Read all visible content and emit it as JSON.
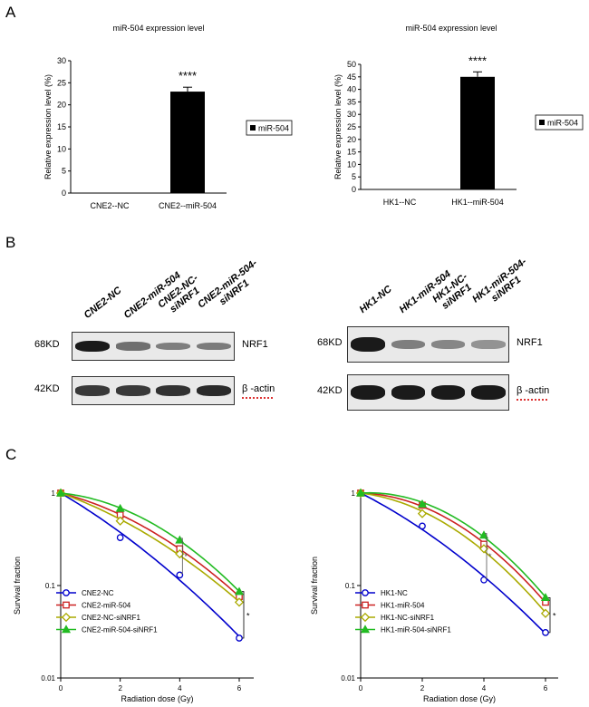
{
  "panels": {
    "a": "A",
    "b": "B",
    "c": "C"
  },
  "bar_charts": [
    {
      "id": "cne2",
      "title": "miR-504 expression level",
      "ylabel": "Relative expression level (%)",
      "yticks": [
        0,
        5,
        10,
        15,
        20,
        25,
        30
      ],
      "ylim": [
        0,
        30
      ],
      "categories": [
        "CNE2--NC",
        "CNE2--miR-504"
      ],
      "values": [
        0,
        23
      ],
      "errors": [
        0,
        1
      ],
      "significance": "****",
      "legend": "miR-504"
    },
    {
      "id": "hk1",
      "title": "miR-504 expression level",
      "ylabel": "Relative expression level (%)",
      "yticks": [
        0,
        5,
        10,
        15,
        20,
        25,
        30,
        35,
        40,
        45,
        50
      ],
      "ylim": [
        0,
        50
      ],
      "categories": [
        "HK1--NC",
        "HK1--miR-504"
      ],
      "values": [
        0,
        45
      ],
      "errors": [
        0,
        2
      ],
      "significance": "****",
      "legend": "miR-504"
    }
  ],
  "blots": [
    {
      "id": "cne2",
      "lanes": [
        "CNE2-NC",
        "CNE2-miR-504",
        "CNE2-NC-siNRF1",
        "CNE2-miR-504-siNRF1"
      ],
      "rows": [
        {
          "kd": "68KD",
          "protein": "NRF1",
          "levels": [
            1.0,
            0.45,
            0.35,
            0.38
          ]
        },
        {
          "kd": "42KD",
          "protein": "β -actin",
          "levels": [
            0.8,
            0.8,
            0.85,
            0.9
          ]
        }
      ]
    },
    {
      "id": "hk1",
      "lanes": [
        "HK1-NC",
        "HK1-miR-504",
        "HK1-NC-siNRF1",
        "HK1-miR-504-siNRF1"
      ],
      "rows": [
        {
          "kd": "68KD",
          "protein": "NRF1",
          "levels": [
            1.0,
            0.35,
            0.3,
            0.22
          ]
        },
        {
          "kd": "42KD",
          "protein": "β -actin",
          "levels": [
            1.0,
            1.0,
            1.0,
            1.0
          ]
        }
      ]
    }
  ],
  "chart_data": [
    {
      "type": "line",
      "id": "cne2",
      "xlabel": "Radiation dose (Gy)",
      "ylabel": "Survival fraction",
      "x": [
        0,
        2,
        4,
        6
      ],
      "xticks": [
        0,
        2,
        4,
        6
      ],
      "yticks": [
        1,
        0.1,
        0.01
      ],
      "yticklabels": [
        "1",
        "0.1",
        "0.01"
      ],
      "yscale": "log",
      "ylim": [
        0.01,
        1
      ],
      "significance": [
        "*",
        "*"
      ],
      "series": [
        {
          "name": "CNE2-NC",
          "color": "#0000cc",
          "marker": "circle",
          "values": [
            1.0,
            0.33,
            0.13,
            0.027
          ]
        },
        {
          "name": "CNE2-miR-504",
          "color": "#cc2222",
          "marker": "square",
          "values": [
            1.0,
            0.58,
            0.25,
            0.076
          ]
        },
        {
          "name": "CNE2-NC-siNRF1",
          "color": "#aaaa00",
          "marker": "diamond",
          "values": [
            1.0,
            0.5,
            0.22,
            0.066
          ]
        },
        {
          "name": "CNE2-miR-504-siNRF1",
          "color": "#22bb22",
          "marker": "triangle",
          "values": [
            1.0,
            0.68,
            0.31,
            0.086
          ]
        }
      ]
    },
    {
      "type": "line",
      "id": "hk1",
      "xlabel": "Radiation dose (Gy)",
      "ylabel": "Survival fraction",
      "x": [
        0,
        2,
        4,
        6
      ],
      "xticks": [
        0,
        2,
        4,
        6
      ],
      "yticks": [
        1,
        0.1,
        0.01
      ],
      "yticklabels": [
        "1",
        "0.1",
        "0.01"
      ],
      "yscale": "log",
      "ylim": [
        0.01,
        1
      ],
      "significance": [
        "*",
        "*"
      ],
      "series": [
        {
          "name": "HK1-NC",
          "color": "#0000cc",
          "marker": "circle",
          "values": [
            1.0,
            0.44,
            0.115,
            0.031
          ]
        },
        {
          "name": "HK1-miR-504",
          "color": "#cc2222",
          "marker": "square",
          "values": [
            1.0,
            0.74,
            0.28,
            0.066
          ]
        },
        {
          "name": "HK1-NC-siNRF1",
          "color": "#aaaa00",
          "marker": "diamond",
          "values": [
            1.0,
            0.6,
            0.25,
            0.05
          ]
        },
        {
          "name": "HK1-miR-504-siNRF1",
          "color": "#22bb22",
          "marker": "triangle",
          "values": [
            1.0,
            0.76,
            0.35,
            0.074
          ]
        }
      ]
    }
  ]
}
